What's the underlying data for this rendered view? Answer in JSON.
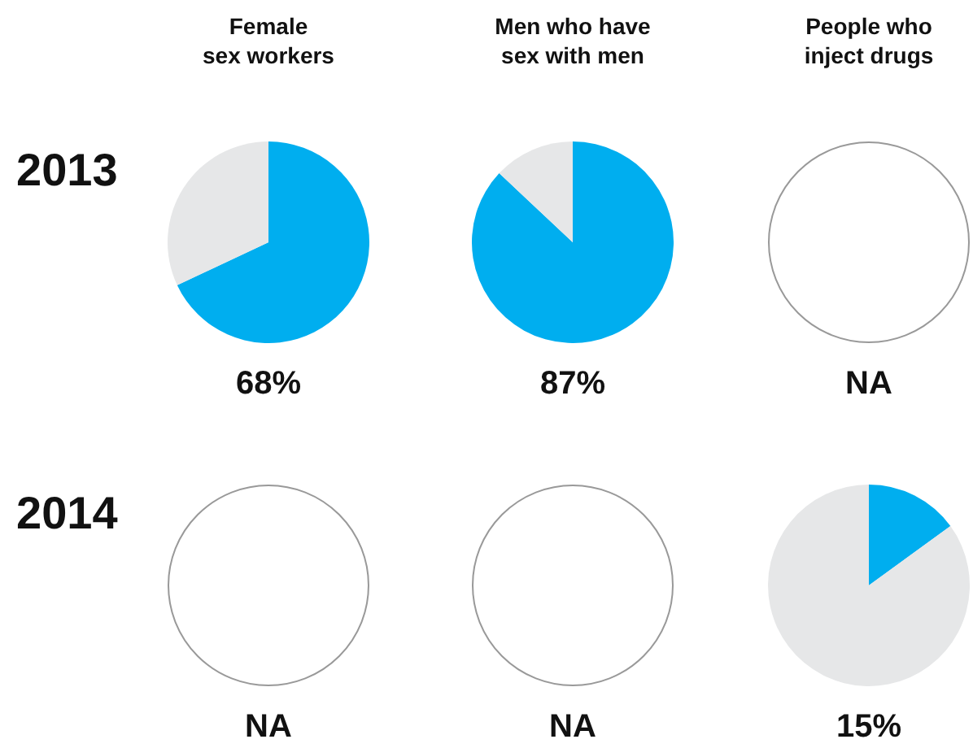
{
  "chart_data": [
    {
      "type": "pie",
      "title": "Female\nsex workers",
      "ylabel": "2013",
      "categories": [
        null,
        null
      ],
      "values": [
        68,
        32
      ],
      "colors": [
        "#00aeef",
        "#e6e7e8"
      ],
      "annotations": [
        "68%"
      ]
    },
    {
      "type": "pie",
      "title": "Men who have\nsex with men",
      "categories": [
        null,
        null
      ],
      "values": [
        87,
        13
      ],
      "colors": [
        "#00aeef",
        "#e6e7e8"
      ],
      "annotations": [
        "87%"
      ]
    },
    {
      "type": "other",
      "title": "People who\ninject drugs",
      "annotations": [
        "NA"
      ]
    },
    {
      "type": "other",
      "ylabel": "2014",
      "annotations": [
        "NA"
      ]
    },
    {
      "type": "other",
      "annotations": [
        "NA"
      ]
    },
    {
      "type": "pie",
      "categories": [
        null,
        null
      ],
      "values": [
        15,
        85
      ],
      "colors": [
        "#00aeef",
        "#e6e7e8"
      ],
      "annotations": [
        "15%"
      ]
    }
  ]
}
